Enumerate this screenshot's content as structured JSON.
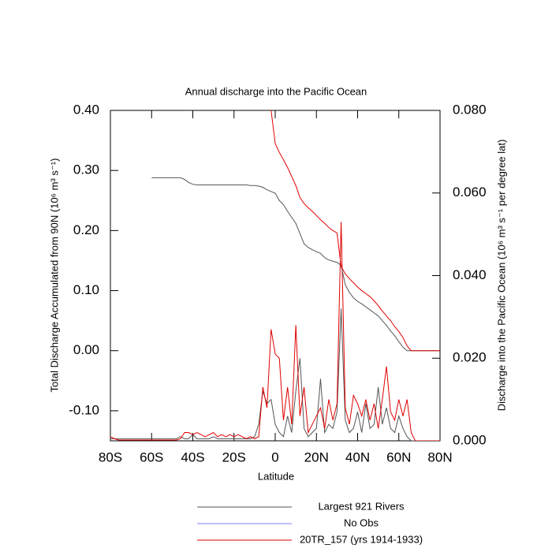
{
  "chart_data": {
    "type": "line",
    "title": "Annual discharge into the Pacific Ocean",
    "xlabel": "Latitude",
    "ylabel": "Total Discharge Accumulated from 90N (10⁶ m³ s⁻¹)",
    "y2label": "Discharge into the Pacific Ocean (10⁶ m³ s⁻¹ per degree lat)",
    "xlim": [
      -80,
      80
    ],
    "xticks": [
      {
        "value": -80,
        "label": "80S"
      },
      {
        "value": -60,
        "label": "60S"
      },
      {
        "value": -40,
        "label": "40S"
      },
      {
        "value": -20,
        "label": "20S"
      },
      0,
      {
        "value": 20,
        "label": "20N"
      },
      {
        "value": 40,
        "label": "40N"
      },
      {
        "value": 60,
        "label": "60N"
      },
      {
        "value": 80,
        "label": "80N"
      }
    ],
    "ylim": [
      -0.15,
      0.4
    ],
    "yticks": [
      {
        "value": -0.1,
        "label": "-0.10"
      },
      {
        "value": 0,
        "label": "0.00"
      },
      {
        "value": 0.1,
        "label": "0.10"
      },
      {
        "value": 0.2,
        "label": "0.20"
      },
      {
        "value": 0.3,
        "label": "0.30"
      },
      {
        "value": 0.4,
        "label": "0.40"
      }
    ],
    "y2lim": [
      0,
      0.08
    ],
    "y2ticks": [
      {
        "value": 0,
        "label": "0.000"
      },
      {
        "value": 0.02,
        "label": "0.020"
      },
      {
        "value": 0.04,
        "label": "0.040"
      },
      {
        "value": 0.06,
        "label": "0.060"
      },
      {
        "value": 0.08,
        "label": "0.080"
      }
    ],
    "x": [
      -80,
      -78,
      -76,
      -74,
      -72,
      -70,
      -68,
      -66,
      -64,
      -62,
      -60,
      -58,
      -56,
      -54,
      -52,
      -50,
      -48,
      -46,
      -44,
      -42,
      -40,
      -38,
      -36,
      -34,
      -32,
      -30,
      -28,
      -26,
      -24,
      -22,
      -20,
      -18,
      -16,
      -14,
      -12,
      -10,
      -8,
      -6,
      -4,
      -2,
      0,
      2,
      4,
      6,
      8,
      10,
      12,
      14,
      16,
      18,
      20,
      22,
      24,
      26,
      28,
      30,
      32,
      34,
      36,
      38,
      40,
      42,
      44,
      46,
      48,
      50,
      52,
      54,
      56,
      58,
      60,
      62,
      64,
      66,
      68,
      70,
      72,
      74,
      76,
      78,
      80
    ],
    "series": [
      {
        "name": "Largest 921 Rivers",
        "color": "#555555",
        "values": [
          null,
          null,
          null,
          null,
          null,
          null,
          null,
          null,
          null,
          null,
          0.288,
          0.288,
          0.288,
          0.288,
          0.288,
          0.288,
          0.288,
          0.288,
          0.285,
          0.28,
          0.277,
          0.276,
          0.276,
          0.276,
          0.276,
          0.276,
          0.276,
          0.276,
          0.276,
          0.276,
          0.276,
          0.276,
          0.276,
          0.276,
          0.275,
          0.275,
          0.274,
          0.272,
          0.268,
          0.265,
          0.262,
          0.25,
          0.243,
          0.232,
          0.222,
          0.212,
          0.195,
          0.178,
          0.172,
          0.168,
          0.165,
          0.162,
          0.155,
          0.151,
          0.149,
          0.147,
          0.142,
          0.11,
          0.097,
          0.088,
          0.082,
          0.078,
          0.073,
          0.068,
          0.063,
          0.058,
          0.05,
          0.042,
          0.033,
          0.025,
          0.015,
          0.006,
          0,
          0,
          0,
          0,
          0,
          0,
          0,
          0,
          0
        ],
        "y2_values": [
          0.0005,
          0.0005,
          0.0005,
          0.0005,
          0.0005,
          0.0005,
          0.0005,
          0.0005,
          0.0005,
          0.0005,
          0.0005,
          0.0005,
          0.0005,
          0.0005,
          0.0005,
          0.0005,
          0.0005,
          0.001,
          0.0005,
          0.0005,
          0.0015,
          0.0005,
          0.0005,
          0.0005,
          0.0005,
          0.001,
          0.0005,
          0.0005,
          0.0005,
          0.0005,
          0.0005,
          0.0005,
          0.0005,
          0.0005,
          0.0005,
          0.001,
          0.004,
          0.012,
          0.009,
          0.01,
          0.004,
          0.002,
          0.001,
          0.006,
          0.002,
          0.012,
          0.02,
          0.003,
          0.001,
          0.002,
          0.003,
          0.015,
          0.002,
          0.004,
          0.003,
          0.007,
          0.032,
          0.005,
          0.002,
          0.003,
          0.007,
          0.002,
          0.009,
          0.003,
          0.004,
          0.013,
          0.004,
          0.008,
          0.003,
          0.002,
          0.006,
          0.003,
          0.001,
          0,
          0,
          0,
          0,
          0,
          0,
          0,
          0
        ]
      },
      {
        "name": "No Obs",
        "color": "#7f7fff"
      },
      {
        "name": "20TR_157 (yrs 1914-1933)",
        "color": "#e00000",
        "values": [
          null,
          null,
          null,
          null,
          null,
          null,
          null,
          null,
          null,
          null,
          null,
          null,
          null,
          null,
          null,
          null,
          null,
          null,
          null,
          null,
          null,
          null,
          null,
          null,
          null,
          null,
          null,
          null,
          null,
          null,
          null,
          null,
          null,
          null,
          null,
          null,
          null,
          null,
          null,
          0.4,
          0.345,
          0.33,
          0.318,
          0.305,
          0.29,
          0.275,
          0.255,
          0.245,
          0.238,
          0.232,
          0.225,
          0.218,
          0.212,
          0.205,
          0.2,
          0.196,
          0.14,
          0.128,
          0.12,
          0.113,
          0.106,
          0.1,
          0.095,
          0.09,
          0.083,
          0.075,
          0.066,
          0.058,
          0.05,
          0.04,
          0.032,
          0.022,
          0.008,
          0,
          0,
          0,
          0,
          0,
          0,
          0,
          0
        ],
        "y2_values": [
          0.001,
          0.0005,
          0.0002,
          0.0002,
          0.0002,
          0.0002,
          0.0002,
          0.0002,
          0.0002,
          0.0002,
          0.0002,
          0.0002,
          0.0002,
          0.0002,
          0.0002,
          0.0002,
          0.0002,
          0.0005,
          0.002,
          0.002,
          0.0015,
          0.002,
          0.0015,
          0.001,
          0.0015,
          0.002,
          0.001,
          0.0015,
          0.001,
          0.0015,
          0.001,
          0.0015,
          0.001,
          0.0005,
          0.001,
          0.0005,
          0.001,
          0.013,
          0.008,
          0.027,
          0.021,
          0.02,
          0.005,
          0.013,
          0.004,
          0.028,
          0.006,
          0.013,
          0.002,
          0.004,
          0.006,
          0.008,
          0.003,
          0.01,
          0.005,
          0.009,
          0.053,
          0.008,
          0.004,
          0.011,
          0.009,
          0.006,
          0.01,
          0.005,
          0.009,
          0.003,
          0.01,
          0.018,
          0.007,
          0.005,
          0.01,
          0.006,
          0.01,
          0.002,
          0,
          0,
          0,
          0,
          0,
          0,
          0
        ]
      }
    ]
  }
}
